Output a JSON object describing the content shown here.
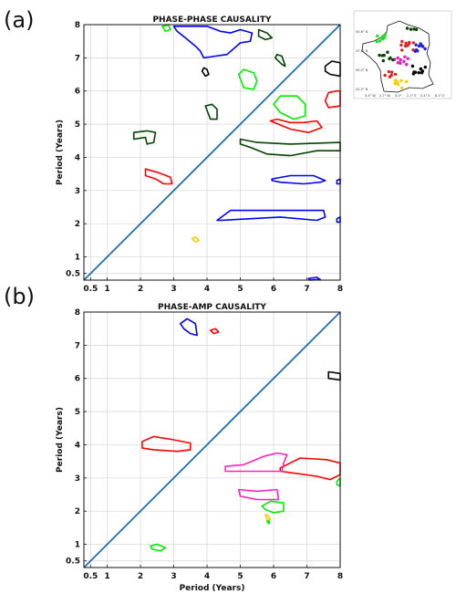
{
  "panel_labels": [
    "(a)",
    "(b)"
  ],
  "inset_map": {
    "lat_ticks": [
      "50.6° N",
      "47.8° N",
      "45.0° N",
      "42.2° N"
    ],
    "lon_ticks": [
      "5.4° W",
      "2.7° W",
      "0.0°",
      "2.7° E",
      "5.4° E",
      "8.1° E"
    ],
    "dot_colors": [
      "#22dd22",
      "#dd2222",
      "#2222dd",
      "#dd22bb",
      "#004400",
      "#000000",
      "#ffcc00"
    ]
  },
  "chart_data": [
    {
      "type": "contour",
      "title": "PHASE-PHASE CAUSALITY",
      "xlabel": "",
      "ylabel": "Period (Years)",
      "xlim": [
        0.3,
        8
      ],
      "ylim": [
        0.3,
        8
      ],
      "ticks": [
        0.5,
        1,
        2,
        3,
        4,
        5,
        6,
        7,
        8
      ],
      "tick_labels": [
        "0.5",
        "1",
        "2",
        "3",
        "4",
        "5",
        "6",
        "7",
        "8"
      ],
      "grid": true,
      "diagonal": {
        "color": "#1f6fb4",
        "from": [
          0.3,
          0.3
        ],
        "to": [
          8,
          8
        ]
      },
      "contours": [
        {
          "color": "#0000ff",
          "points": [
            [
              3.0,
              7.95
            ],
            [
              3.1,
              7.8
            ],
            [
              3.35,
              7.6
            ],
            [
              3.65,
              7.35
            ],
            [
              3.8,
              7.2
            ],
            [
              3.9,
              7.0
            ],
            [
              4.25,
              7.05
            ],
            [
              4.6,
              7.1
            ],
            [
              5.0,
              7.45
            ],
            [
              5.3,
              7.5
            ],
            [
              5.35,
              7.75
            ],
            [
              5.0,
              7.85
            ],
            [
              4.7,
              7.75
            ],
            [
              4.4,
              7.8
            ],
            [
              4.0,
              7.95
            ]
          ]
        },
        {
          "color": "#00ee00",
          "points": [
            [
              2.65,
              7.95
            ],
            [
              2.75,
              7.8
            ],
            [
              2.9,
              7.85
            ],
            [
              2.85,
              7.98
            ]
          ]
        },
        {
          "color": "#004400",
          "points": [
            [
              5.55,
              7.85
            ],
            [
              5.8,
              7.75
            ],
            [
              5.95,
              7.6
            ],
            [
              5.75,
              7.55
            ],
            [
              5.55,
              7.65
            ]
          ]
        },
        {
          "color": "#004400",
          "points": [
            [
              6.05,
              7.0
            ],
            [
              6.25,
              6.8
            ],
            [
              6.35,
              6.75
            ],
            [
              6.3,
              6.9
            ],
            [
              6.25,
              7.05
            ],
            [
              6.1,
              7.1
            ]
          ]
        },
        {
          "color": "#000000",
          "points": [
            [
              3.85,
              6.6
            ],
            [
              3.95,
              6.45
            ],
            [
              4.05,
              6.5
            ],
            [
              4.0,
              6.65
            ],
            [
              3.9,
              6.7
            ]
          ]
        },
        {
          "color": "#00ee00",
          "points": [
            [
              4.95,
              6.5
            ],
            [
              5.1,
              6.1
            ],
            [
              5.4,
              6.05
            ],
            [
              5.5,
              6.3
            ],
            [
              5.4,
              6.55
            ],
            [
              5.1,
              6.65
            ]
          ]
        },
        {
          "color": "#000000",
          "points": [
            [
              7.55,
              6.75
            ],
            [
              7.75,
              6.9
            ],
            [
              8.0,
              6.85
            ],
            [
              8.0,
              6.45
            ],
            [
              7.7,
              6.5
            ],
            [
              7.55,
              6.6
            ]
          ]
        },
        {
          "color": "#ff0000",
          "points": [
            [
              7.9,
              6.0
            ],
            [
              7.65,
              5.95
            ],
            [
              7.55,
              5.7
            ],
            [
              7.65,
              5.5
            ],
            [
              8.0,
              5.55
            ],
            [
              8.0,
              6.0
            ]
          ]
        },
        {
          "color": "#00ee00",
          "points": [
            [
              6.0,
              5.6
            ],
            [
              6.2,
              5.35
            ],
            [
              6.6,
              5.15
            ],
            [
              6.95,
              5.25
            ],
            [
              6.95,
              5.6
            ],
            [
              6.7,
              5.85
            ],
            [
              6.2,
              5.85
            ]
          ]
        },
        {
          "color": "#004400",
          "points": [
            [
              3.95,
              5.55
            ],
            [
              4.1,
              5.15
            ],
            [
              4.3,
              5.15
            ],
            [
              4.3,
              5.45
            ],
            [
              4.15,
              5.6
            ]
          ]
        },
        {
          "color": "#ff0000",
          "points": [
            [
              5.9,
              5.1
            ],
            [
              6.5,
              4.85
            ],
            [
              7.05,
              4.75
            ],
            [
              7.45,
              4.9
            ],
            [
              7.3,
              5.1
            ],
            [
              6.9,
              5.05
            ],
            [
              6.5,
              5.05
            ],
            [
              6.1,
              5.15
            ]
          ]
        },
        {
          "color": "#004400",
          "points": [
            [
              1.8,
              4.75
            ],
            [
              2.2,
              4.8
            ],
            [
              2.45,
              4.75
            ],
            [
              2.4,
              4.45
            ],
            [
              2.2,
              4.4
            ],
            [
              2.15,
              4.6
            ],
            [
              1.8,
              4.55
            ]
          ]
        },
        {
          "color": "#004400",
          "points": [
            [
              5.0,
              4.55
            ],
            [
              5.5,
              4.45
            ],
            [
              6.5,
              4.4
            ],
            [
              8.0,
              4.45
            ],
            [
              8.0,
              4.2
            ],
            [
              7.3,
              4.2
            ],
            [
              6.5,
              4.05
            ],
            [
              5.8,
              4.1
            ],
            [
              5.3,
              4.3
            ],
            [
              5.0,
              4.4
            ]
          ]
        },
        {
          "color": "#ff0000",
          "points": [
            [
              2.15,
              3.65
            ],
            [
              2.5,
              3.55
            ],
            [
              2.9,
              3.4
            ],
            [
              2.95,
              3.2
            ],
            [
              2.7,
              3.2
            ],
            [
              2.45,
              3.35
            ],
            [
              2.15,
              3.45
            ]
          ]
        },
        {
          "color": "#0000ff",
          "points": [
            [
              5.95,
              3.35
            ],
            [
              6.5,
              3.45
            ],
            [
              7.2,
              3.45
            ],
            [
              7.55,
              3.3
            ],
            [
              7.4,
              3.25
            ],
            [
              6.9,
              3.2
            ],
            [
              6.2,
              3.25
            ],
            [
              5.95,
              3.3
            ]
          ]
        },
        {
          "color": "#0000ff",
          "points": [
            [
              7.9,
              3.3
            ],
            [
              8.0,
              3.35
            ],
            [
              8.0,
              3.2
            ],
            [
              7.9,
              3.2
            ]
          ]
        },
        {
          "color": "#0000ff",
          "points": [
            [
              4.3,
              2.1
            ],
            [
              4.7,
              2.4
            ],
            [
              7.5,
              2.4
            ],
            [
              7.55,
              2.2
            ],
            [
              7.3,
              2.1
            ],
            [
              6.2,
              2.2
            ],
            [
              4.4,
              2.1
            ]
          ]
        },
        {
          "color": "#0000ff",
          "points": [
            [
              7.9,
              2.15
            ],
            [
              8.0,
              2.2
            ],
            [
              8.0,
              2.05
            ],
            [
              7.9,
              2.05
            ]
          ]
        },
        {
          "color": "#ffcc00",
          "points": [
            [
              3.55,
              1.55
            ],
            [
              3.65,
              1.45
            ],
            [
              3.75,
              1.5
            ],
            [
              3.65,
              1.6
            ]
          ]
        },
        {
          "color": "#0000ff",
          "points": [
            [
              7.05,
              0.35
            ],
            [
              7.3,
              0.38
            ],
            [
              7.4,
              0.32
            ],
            [
              7.1,
              0.3
            ]
          ]
        }
      ]
    },
    {
      "type": "contour",
      "title": "PHASE-AMP CAUSALITY",
      "xlabel": "Period (Years)",
      "ylabel": "Period (Years)",
      "xlim": [
        0.3,
        8
      ],
      "ylim": [
        0.3,
        8
      ],
      "ticks": [
        0.5,
        1,
        2,
        3,
        4,
        5,
        6,
        7,
        8
      ],
      "tick_labels": [
        "0.5",
        "1",
        "2",
        "3",
        "4",
        "5",
        "6",
        "7",
        "8"
      ],
      "grid": true,
      "diagonal": {
        "color": "#1f6fb4",
        "from": [
          0.3,
          0.3
        ],
        "to": [
          8,
          8
        ]
      },
      "contours": [
        {
          "color": "#0000ff",
          "points": [
            [
              3.2,
              7.65
            ],
            [
              3.4,
              7.8
            ],
            [
              3.65,
              7.65
            ],
            [
              3.7,
              7.3
            ],
            [
              3.5,
              7.35
            ],
            [
              3.3,
              7.5
            ]
          ]
        },
        {
          "color": "#ff0000",
          "points": [
            [
              4.1,
              7.45
            ],
            [
              4.25,
              7.5
            ],
            [
              4.35,
              7.4
            ],
            [
              4.2,
              7.35
            ]
          ]
        },
        {
          "color": "#000000",
          "points": [
            [
              7.65,
              6.2
            ],
            [
              8.0,
              6.15
            ],
            [
              8.0,
              5.95
            ],
            [
              7.65,
              6.0
            ]
          ]
        },
        {
          "color": "#ff0000",
          "points": [
            [
              2.05,
              4.1
            ],
            [
              2.4,
              4.25
            ],
            [
              3.0,
              4.15
            ],
            [
              3.5,
              4.05
            ],
            [
              3.5,
              3.85
            ],
            [
              3.1,
              3.8
            ],
            [
              2.4,
              3.85
            ],
            [
              2.05,
              3.9
            ]
          ]
        },
        {
          "color": "#ff0000",
          "points": [
            [
              6.2,
              3.3
            ],
            [
              6.8,
              3.6
            ],
            [
              7.6,
              3.55
            ],
            [
              8.0,
              3.45
            ],
            [
              8.0,
              3.1
            ],
            [
              7.7,
              2.95
            ],
            [
              7.3,
              3.05
            ],
            [
              6.6,
              3.15
            ],
            [
              6.2,
              3.2
            ]
          ]
        },
        {
          "color": "#ff22bb",
          "points": [
            [
              4.55,
              3.35
            ],
            [
              5.1,
              3.4
            ],
            [
              5.7,
              3.65
            ],
            [
              6.1,
              3.75
            ],
            [
              6.4,
              3.7
            ],
            [
              6.3,
              3.45
            ],
            [
              6.25,
              3.2
            ],
            [
              5.2,
              3.2
            ],
            [
              4.55,
              3.2
            ]
          ]
        },
        {
          "color": "#ff22bb",
          "points": [
            [
              4.95,
              2.65
            ],
            [
              5.5,
              2.6
            ],
            [
              6.1,
              2.65
            ],
            [
              6.15,
              2.35
            ],
            [
              5.5,
              2.35
            ],
            [
              5.0,
              2.45
            ]
          ]
        },
        {
          "color": "#00ee00",
          "points": [
            [
              7.9,
              2.9
            ],
            [
              8.0,
              3.0
            ],
            [
              8.0,
              2.75
            ],
            [
              7.9,
              2.8
            ]
          ]
        },
        {
          "color": "#00ee00",
          "points": [
            [
              5.65,
              2.15
            ],
            [
              5.9,
              2.3
            ],
            [
              6.3,
              2.25
            ],
            [
              6.3,
              2.0
            ],
            [
              6.0,
              1.95
            ],
            [
              5.75,
              2.05
            ]
          ]
        },
        {
          "color": "#ffcc00",
          "points": [
            [
              5.75,
              1.9
            ],
            [
              5.85,
              1.85
            ],
            [
              5.9,
              1.75
            ],
            [
              5.8,
              1.75
            ]
          ]
        },
        {
          "color": "#00ee00",
          "points": [
            [
              5.8,
              1.7
            ],
            [
              5.88,
              1.7
            ],
            [
              5.85,
              1.62
            ]
          ]
        },
        {
          "color": "#00ee00",
          "points": [
            [
              2.3,
              0.95
            ],
            [
              2.5,
              1.0
            ],
            [
              2.75,
              0.9
            ],
            [
              2.6,
              0.8
            ],
            [
              2.35,
              0.85
            ]
          ]
        }
      ]
    }
  ]
}
